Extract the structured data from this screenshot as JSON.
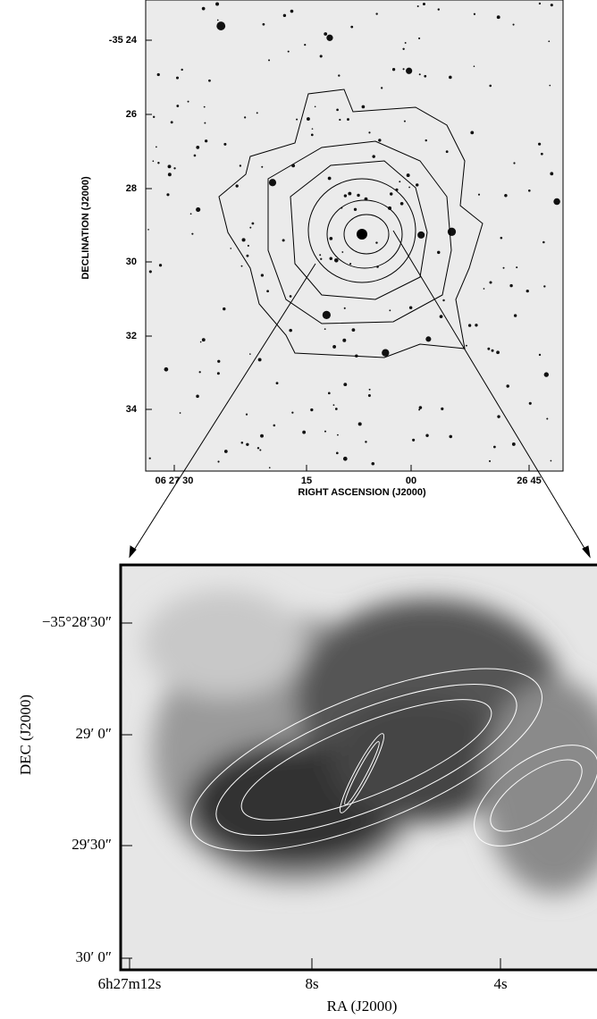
{
  "top_panel": {
    "y_title": "DECLINATION (J2000)",
    "x_title": "RIGHT ASCENSION (J2000)",
    "y_tick_labels": [
      "-35 24",
      "26",
      "28",
      "30",
      "32",
      "34"
    ],
    "x_tick_labels": [
      "06 27 30",
      "15",
      "00",
      "26 45"
    ]
  },
  "bottom_panel": {
    "y_title": "DEC (J2000)",
    "x_title": "RA (J2000)",
    "y_tick_labels": [
      "−35°28′30″",
      "29′ 0″",
      "29′30″",
      "30′ 0″"
    ],
    "x_tick_labels": [
      "6h27m12s",
      "8s",
      "4s"
    ]
  }
}
